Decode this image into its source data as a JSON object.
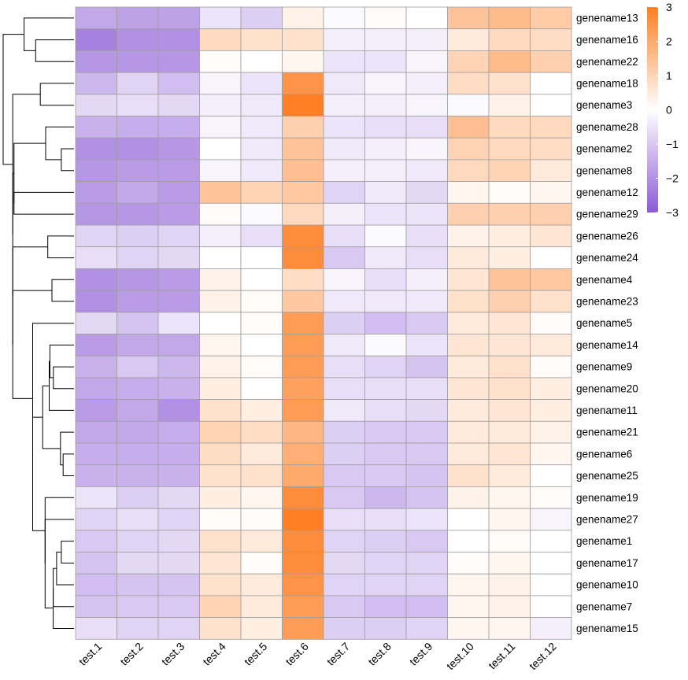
{
  "chart_data": {
    "type": "heatmap",
    "title": "",
    "columns": [
      "test.1",
      "test.2",
      "test.3",
      "test.4",
      "test.5",
      "test.6",
      "test.7",
      "test.8",
      "test.9",
      "test.10",
      "test.11",
      "test.12"
    ],
    "rows": [
      "genename13",
      "genename16",
      "genename22",
      "genename18",
      "genename3",
      "genename28",
      "genename2",
      "genename8",
      "genename12",
      "genename29",
      "genename26",
      "genename24",
      "genename4",
      "genename23",
      "genename5",
      "genename14",
      "genename9",
      "genename20",
      "genename11",
      "genename21",
      "genename6",
      "genename25",
      "genename19",
      "genename27",
      "genename1",
      "genename17",
      "genename10",
      "genename7",
      "genename15"
    ],
    "values": [
      [
        -1.6,
        -1.7,
        -1.7,
        -0.5,
        -0.9,
        0.3,
        -0.1,
        0.1,
        0.0,
        1.4,
        1.6,
        1.2
      ],
      [
        -2.3,
        -2.0,
        -2.0,
        0.9,
        0.7,
        0.7,
        -0.3,
        -0.3,
        -0.3,
        0.5,
        0.9,
        0.8
      ],
      [
        -1.9,
        -1.9,
        -1.9,
        0.1,
        0.0,
        0.2,
        -0.5,
        -0.5,
        -0.2,
        1.0,
        1.6,
        1.1
      ],
      [
        -1.3,
        -0.8,
        -1.2,
        -0.2,
        -0.5,
        2.5,
        -0.4,
        -0.2,
        -0.3,
        0.8,
        0.7,
        0.0
      ],
      [
        -0.7,
        -0.6,
        -0.7,
        -0.3,
        -0.4,
        3.0,
        -0.3,
        -0.3,
        -0.2,
        -0.1,
        0.3,
        0.0
      ],
      [
        -1.4,
        -1.5,
        -1.5,
        -0.2,
        -0.4,
        1.1,
        -0.5,
        -0.6,
        -0.6,
        1.5,
        0.9,
        0.9
      ],
      [
        -2.0,
        -2.0,
        -1.9,
        0.0,
        -0.4,
        1.4,
        -0.4,
        -0.3,
        -0.2,
        1.0,
        0.9,
        0.8
      ],
      [
        -1.9,
        -1.8,
        -1.8,
        -0.2,
        -0.4,
        1.5,
        -0.3,
        -0.3,
        -0.4,
        0.9,
        1.0,
        0.5
      ],
      [
        -1.8,
        -1.6,
        -1.8,
        1.4,
        1.0,
        1.3,
        -0.8,
        -0.4,
        -0.7,
        0.2,
        0.1,
        0.2
      ],
      [
        -1.9,
        -1.9,
        -1.8,
        0.1,
        -0.1,
        0.9,
        -0.3,
        -0.5,
        -0.5,
        1.1,
        1.1,
        1.1
      ],
      [
        -0.8,
        -0.9,
        -0.8,
        -0.3,
        -0.6,
        2.7,
        -0.6,
        -0.1,
        -0.6,
        0.3,
        0.4,
        0.6
      ],
      [
        -0.6,
        -0.8,
        -0.7,
        0.0,
        0.0,
        2.7,
        -1.0,
        -0.4,
        -0.6,
        0.5,
        0.4,
        0.0
      ],
      [
        -2.0,
        -1.9,
        -1.8,
        0.3,
        0.0,
        0.8,
        -0.2,
        -0.6,
        -0.3,
        0.6,
        1.4,
        1.3
      ],
      [
        -2.0,
        -1.8,
        -1.8,
        0.3,
        0.1,
        1.3,
        -0.4,
        -0.4,
        -0.4,
        0.7,
        1.1,
        0.7
      ],
      [
        -0.7,
        -1.1,
        -0.5,
        0.0,
        0.1,
        2.3,
        -0.9,
        -1.2,
        -1.0,
        0.5,
        0.6,
        0.1
      ],
      [
        -1.8,
        -1.6,
        -1.6,
        0.2,
        0.0,
        2.3,
        -0.4,
        -0.1,
        -0.5,
        0.6,
        0.6,
        0.5
      ],
      [
        -1.4,
        -1.0,
        -1.3,
        0.3,
        0.1,
        2.3,
        -0.6,
        -0.8,
        -1.1,
        0.5,
        0.7,
        0.1
      ],
      [
        -1.6,
        -1.5,
        -1.4,
        0.4,
        0.0,
        2.2,
        -0.6,
        -0.6,
        -0.6,
        0.6,
        0.7,
        0.4
      ],
      [
        -1.8,
        -1.6,
        -2.0,
        0.7,
        0.4,
        2.3,
        -0.4,
        -0.6,
        -0.7,
        0.5,
        0.6,
        0.4
      ],
      [
        -1.6,
        -1.6,
        -1.5,
        1.0,
        0.8,
        1.7,
        -0.9,
        -1.0,
        -1.0,
        0.5,
        0.5,
        0.3
      ],
      [
        -1.5,
        -1.5,
        -1.5,
        0.8,
        0.5,
        1.9,
        -0.9,
        -1.0,
        -1.0,
        0.5,
        0.6,
        0.2
      ],
      [
        -1.4,
        -1.4,
        -1.4,
        0.7,
        0.7,
        2.0,
        -1.0,
        -1.0,
        -1.1,
        0.7,
        0.5,
        0.0
      ],
      [
        -0.5,
        -0.9,
        -0.7,
        0.4,
        0.2,
        2.7,
        -1.0,
        -1.3,
        -1.1,
        0.3,
        0.2,
        0.1
      ],
      [
        -0.8,
        -0.6,
        -0.8,
        0.1,
        0.1,
        3.0,
        -0.6,
        -0.6,
        -0.5,
        0.0,
        0.2,
        -0.2
      ],
      [
        -1.0,
        -0.8,
        -0.7,
        0.7,
        0.5,
        2.7,
        -0.8,
        -0.9,
        -1.0,
        0.0,
        0.1,
        0.0
      ],
      [
        -1.1,
        -0.7,
        -0.7,
        0.6,
        0.1,
        2.7,
        -0.7,
        -0.8,
        -0.8,
        0.1,
        0.2,
        0.0
      ],
      [
        -1.2,
        -1.1,
        -1.1,
        0.7,
        0.5,
        2.5,
        -0.8,
        -0.8,
        -0.8,
        0.2,
        0.3,
        0.0
      ],
      [
        -1.1,
        -1.0,
        -1.0,
        1.0,
        0.5,
        2.3,
        -1.0,
        -1.2,
        -1.2,
        0.2,
        0.3,
        0.0
      ],
      [
        -0.6,
        -0.8,
        -0.8,
        0.7,
        0.4,
        2.3,
        -0.9,
        -0.9,
        -0.8,
        0.2,
        0.2,
        -0.3
      ]
    ],
    "legend": {
      "position": "right",
      "ticks": [
        3,
        2,
        1,
        0,
        -1,
        -2,
        -3
      ],
      "tick_labels": [
        "3",
        "2",
        "1",
        "0",
        "−1",
        "−2",
        "−3"
      ],
      "range": [
        -3,
        3
      ]
    },
    "colors": {
      "low": "#8c5ad6",
      "mid": "#ffffff",
      "high": "#ff7f24",
      "border": "#9e9e9e",
      "tree": "#000000"
    },
    "row_dendrogram": "left",
    "xlabel": "",
    "ylabel": ""
  }
}
